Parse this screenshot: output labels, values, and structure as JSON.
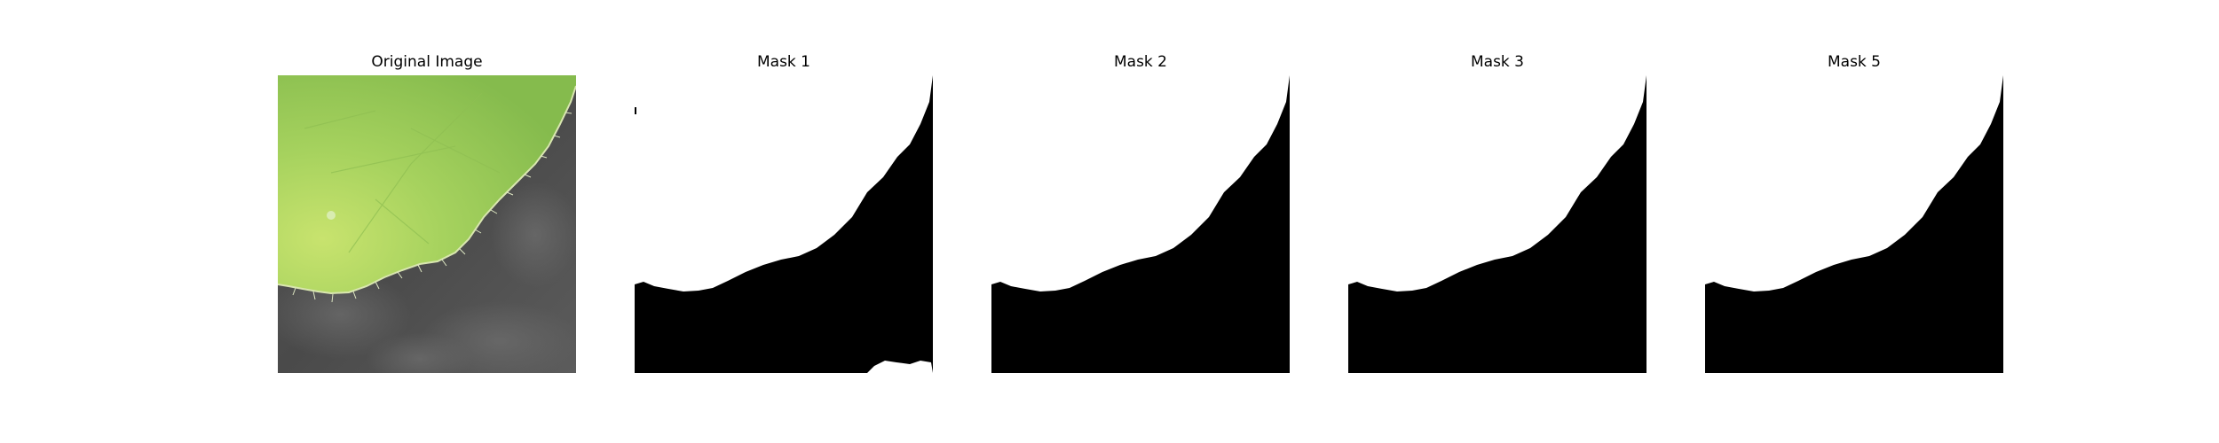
{
  "figure": {
    "panels": [
      {
        "title": "Original Image",
        "kind": "photo"
      },
      {
        "title": "Mask 1",
        "kind": "mask"
      },
      {
        "title": "Mask 2",
        "kind": "mask"
      },
      {
        "title": "Mask 3",
        "kind": "mask"
      },
      {
        "title": "Mask 5",
        "kind": "mask"
      }
    ]
  },
  "colors": {
    "leaf_light": "#c6e26c",
    "leaf_mid": "#9fce5b",
    "leaf_dark": "#7fb24a",
    "background_dark": "#4d4d4d",
    "background_mid": "#5e5e5e",
    "mask_foreground": "#ffffff",
    "mask_background": "#000000"
  }
}
